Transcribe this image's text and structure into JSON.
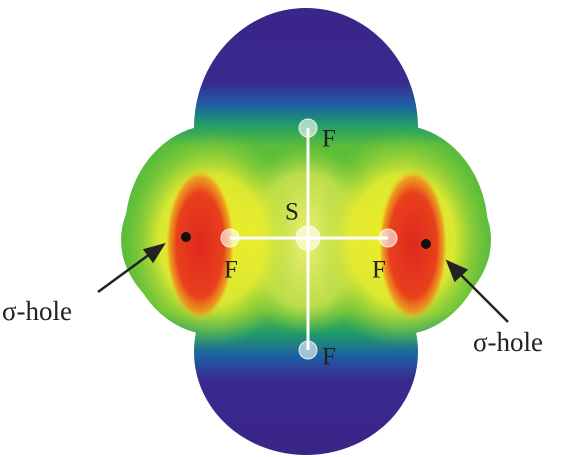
{
  "atoms": [
    {
      "label": "F"
    },
    {
      "label": "F"
    },
    {
      "label": "S"
    },
    {
      "label": "F"
    },
    {
      "label": "F"
    }
  ],
  "annotations": [
    {
      "label": "σ-hole"
    },
    {
      "label": "σ-hole"
    }
  ]
}
